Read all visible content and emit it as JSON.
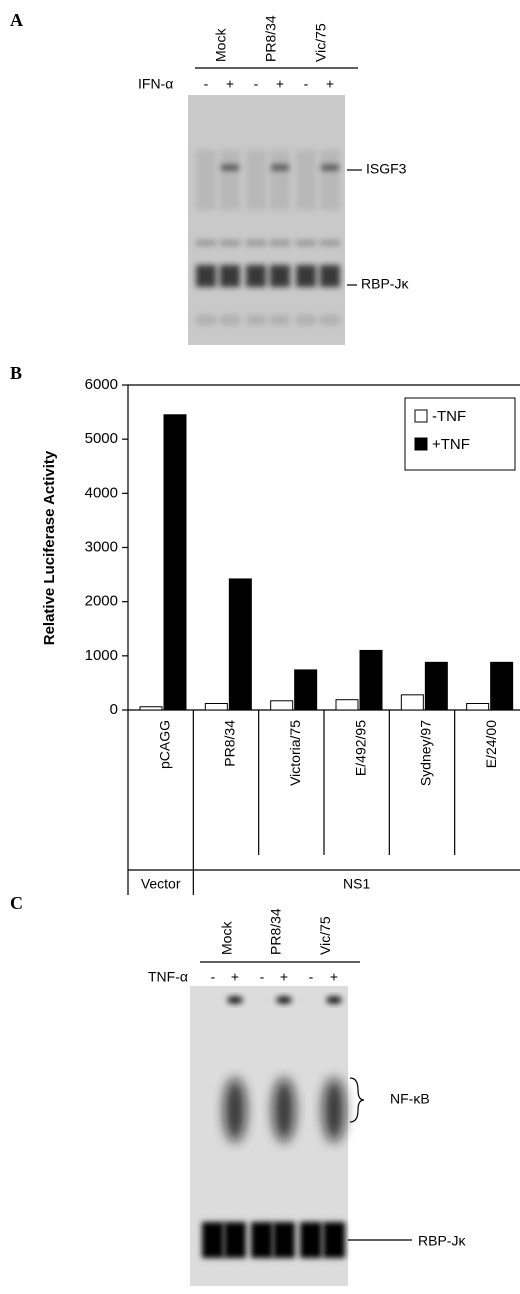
{
  "panel_a": {
    "label": "A",
    "lanes": [
      "Mock",
      "PR8/34",
      "Vic/75"
    ],
    "treatment": "IFN-α",
    "signs": [
      "-",
      "+",
      "-",
      "+",
      "-",
      "+"
    ],
    "bands": [
      "ISGF3",
      "RBP-Jκ"
    ]
  },
  "chart_data": {
    "type": "bar",
    "panel": "B",
    "ylabel": "Relative Luciferase Activity",
    "categories": [
      "pCAGG",
      "PR8/34",
      "Victoria/75",
      "E/492/95",
      "Sydney/97",
      "E/24/00"
    ],
    "group_labels": [
      "Vector",
      "NS1"
    ],
    "series": [
      {
        "name": "-TNF",
        "color": "#ffffff",
        "values": [
          60,
          120,
          170,
          190,
          280,
          120
        ]
      },
      {
        "name": "+TNF",
        "color": "#000000",
        "values": [
          5450,
          2420,
          740,
          1100,
          880,
          880
        ]
      }
    ],
    "ylim": [
      0,
      6000
    ],
    "yticks": [
      0,
      1000,
      2000,
      3000,
      4000,
      5000,
      6000
    ],
    "legend": "top-right"
  },
  "panel_c": {
    "label": "C",
    "lanes": [
      "Mock",
      "PR8/34",
      "Vic/75"
    ],
    "treatment": "TNF-α",
    "signs": [
      "-",
      "+",
      "-",
      "+",
      "-",
      "+"
    ],
    "bands": [
      "NF-κB",
      "RBP-Jκ"
    ]
  }
}
